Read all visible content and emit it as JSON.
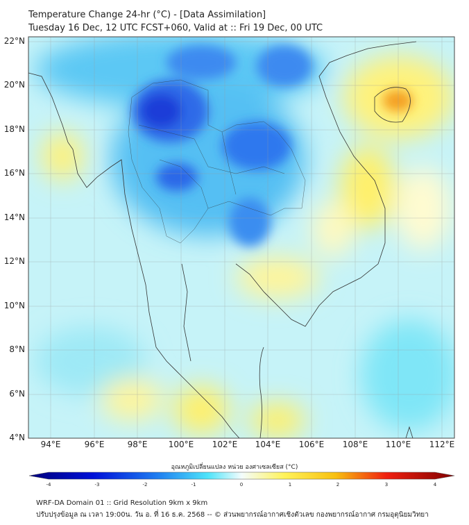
{
  "header": {
    "title": "Temperature Change 24-hr (°C) - [Data Assimilation]",
    "subtitle": "Tuesday 16 Dec, 12 UTC FCST+060, Valid at :: Fri 19 Dec, 00 UTC"
  },
  "map": {
    "lat_labels": [
      "22°N",
      "20°N",
      "18°N",
      "16°N",
      "14°N",
      "12°N",
      "10°N",
      "8°N",
      "6°N",
      "4°N"
    ],
    "lon_labels": [
      "94°E",
      "96°E",
      "98°E",
      "100°E",
      "102°E",
      "104°E",
      "106°E",
      "108°E",
      "110°E",
      "112°E"
    ],
    "colors": {
      "cold_dark": "#1030d0",
      "cold": "#2f8cf0",
      "cool": "#7fdcf7",
      "neutral": "#c8f4f8",
      "warm": "#fff36a",
      "hot": "#f4a020"
    }
  },
  "colorbar": {
    "label": "อุณหภูมิเปลี่ยนแปลง หน่วย องศาเซลเซียส (°C)",
    "ticks": [
      "-4",
      "-3",
      "-2",
      "-1",
      "0",
      "1",
      "2",
      "3",
      "4"
    ],
    "range": [
      -4,
      4
    ]
  },
  "footer": {
    "line1": "WRF-DA Domain 01 :: Grid Resolution 9km x 9km",
    "line2": "ปรับปรุงข้อมูล ณ เวลา 19:00น. วัน อ. ที่ 16 ธ.ค. 2568 -- © ส่วนพยากรณ์อากาศเชิงตัวเลข กองพยากรณ์อากาศ กรมอุตุนิยมวิทยา"
  }
}
